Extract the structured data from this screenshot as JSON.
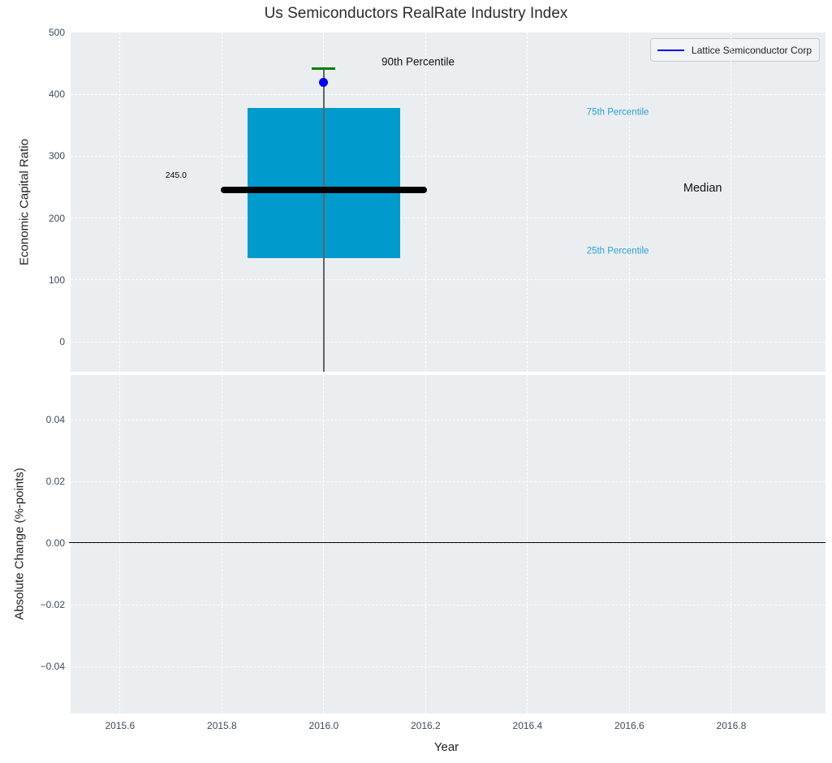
{
  "title": "Us Semiconductors RealRate Industry Index",
  "legend": {
    "label": "Lattice Semiconductor Corp",
    "color": "#0000EE"
  },
  "colors": {
    "panel_background": "#ebeef0",
    "grid": "#ffffff",
    "box_fill": "#009ACD",
    "median_line": "#000000",
    "whisker": "#606468",
    "whisker_cap": "#008000",
    "company_point": "#0000EE",
    "tick_label": "#3d4b5c",
    "percentile_label": "#2BA0D6",
    "text": "#1f1f1f"
  },
  "chart_data": [
    {
      "type": "box",
      "panel": "top",
      "title": "Us Semiconductors RealRate Industry Index",
      "xlabel": "Year",
      "ylabel": "Economic Capital Ratio",
      "xlim": [
        2015.503,
        2016.985
      ],
      "ylim": [
        -48.3,
        500
      ],
      "grid": true,
      "legend_entries": [
        "Lattice Semiconductor Corp"
      ],
      "legend_position": "upper right",
      "xticks": [
        2015.6,
        2015.8,
        2016.0,
        2016.2,
        2016.4,
        2016.6,
        2016.8
      ],
      "xtick_labels": [
        "2015.6",
        "2015.8",
        "2016.0",
        "2016.2",
        "2016.4",
        "2016.6",
        "2016.8"
      ],
      "yticks": [
        0,
        100,
        200,
        300,
        400,
        500
      ],
      "ytick_labels": [
        "0",
        "100",
        "200",
        "300",
        "400",
        "500"
      ],
      "series": {
        "name": "Lattice Semiconductor Corp",
        "x": 2016.0,
        "q1": 135,
        "median": 245,
        "q3": 378,
        "p90": 442,
        "company_point": 419,
        "box_width": 0.3,
        "median_line_width": 0.405,
        "cap_width": 0.046
      },
      "annotations": [
        {
          "text": "245.0",
          "x": 2015.71,
          "y": 268,
          "align": "center",
          "size": 10.5,
          "color": "#000000"
        },
        {
          "text": "90th Percentile",
          "x": 2016.185,
          "y": 451,
          "align": "center",
          "size": 13.5,
          "color": "#111111"
        },
        {
          "text": "75th Percentile",
          "x": 2016.516,
          "y": 370,
          "align": "left",
          "size": 11.5,
          "color": "#2BA0D6"
        },
        {
          "text": "Median",
          "x": 2016.706,
          "y": 247,
          "align": "left",
          "size": 14.5,
          "color": "#111111"
        },
        {
          "text": "25th Percentile",
          "x": 2016.516,
          "y": 146,
          "align": "left",
          "size": 11.5,
          "color": "#2BA0D6"
        }
      ]
    },
    {
      "type": "line",
      "panel": "bottom",
      "xlabel": "Year",
      "ylabel": "Absolute Change (%-points)",
      "xlim": [
        2015.503,
        2016.985
      ],
      "ylim": [
        -0.0552,
        0.0545
      ],
      "grid": true,
      "xticks": [
        2015.6,
        2015.8,
        2016.0,
        2016.2,
        2016.4,
        2016.6,
        2016.8
      ],
      "xtick_labels": [
        "2015.6",
        "2015.8",
        "2016.0",
        "2016.2",
        "2016.4",
        "2016.6",
        "2016.8"
      ],
      "yticks": [
        0.04,
        0.02,
        0.0,
        -0.02,
        -0.04
      ],
      "ytick_labels": [
        "0.04",
        "0.02",
        "0.00",
        "−0.02",
        "−0.04"
      ],
      "zero_line": 0.0,
      "series": []
    }
  ]
}
